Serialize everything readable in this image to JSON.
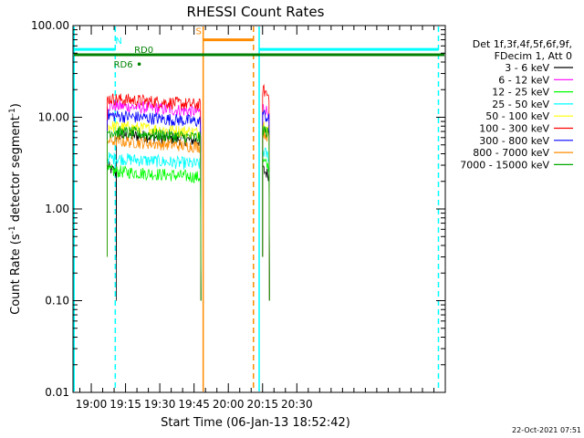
{
  "chart_data": {
    "type": "line",
    "title": "RHESSI Count Rates",
    "xlabel": "Start Time (06-Jan-13 18:52:42)",
    "ylabel": "Count Rate (s",
    "ylabel_sup": "-1",
    "ylabel_tail": " detector segment",
    "ylabel_sup2": "-1",
    "ylabel_close": ")",
    "y_scale": "log",
    "ylim": [
      0.01,
      100
    ],
    "xlim_minutes": [
      -8,
      155
    ],
    "y_ticks": [
      {
        "value": 0.01,
        "label": "0.01"
      },
      {
        "value": 0.1,
        "label": "0.10"
      },
      {
        "value": 1,
        "label": "1.00"
      },
      {
        "value": 10,
        "label": "10.00"
      },
      {
        "value": 100,
        "label": "100.00"
      }
    ],
    "x_ticks": [
      {
        "minute": 0,
        "label": "19:00"
      },
      {
        "minute": 15,
        "label": "19:15"
      },
      {
        "minute": 30,
        "label": "19:30"
      },
      {
        "minute": 45,
        "label": "19:45"
      },
      {
        "minute": 60,
        "label": "20:00"
      },
      {
        "minute": 75,
        "label": "20:15"
      },
      {
        "minute": 90,
        "label": "20:30"
      }
    ],
    "legend_header": [
      "Det 1f,3f,4f,5f,6f,9f,",
      "FDecim 1, Att 0"
    ],
    "series": [
      {
        "name": "3 - 6 keV",
        "color": "#000000",
        "segments": [
          {
            "start": 7,
            "end": 11,
            "level": 2.9
          },
          {
            "start": 11,
            "end": 48,
            "level": 6.5
          },
          {
            "start": 75,
            "end": 78,
            "level": 2.7
          }
        ]
      },
      {
        "name": "6 - 12 keV",
        "color": "#ff00ff",
        "segments": [
          {
            "start": 7,
            "end": 48,
            "level": 13.5
          },
          {
            "start": 75,
            "end": 78,
            "level": 13
          }
        ]
      },
      {
        "name": "12 - 25 keV",
        "color": "#00ff00",
        "segments": [
          {
            "start": 7,
            "end": 48,
            "level": 2.6
          },
          {
            "start": 75,
            "end": 78,
            "level": 3.3
          }
        ]
      },
      {
        "name": "25 - 50 keV",
        "color": "#00ffff",
        "segments": [
          {
            "start": 7,
            "end": 48,
            "level": 3.6
          },
          {
            "start": 75,
            "end": 78,
            "level": 4.3
          }
        ]
      },
      {
        "name": "50 - 100 keV",
        "color": "#ffff00",
        "segments": [
          {
            "start": 7,
            "end": 48,
            "level": 8.0
          },
          {
            "start": 75,
            "end": 78,
            "level": 8.5
          }
        ]
      },
      {
        "name": "100 - 300 keV",
        "color": "#ff0000",
        "segments": [
          {
            "start": 7,
            "end": 48,
            "level": 16.0
          },
          {
            "start": 75,
            "end": 78,
            "level": 20
          }
        ]
      },
      {
        "name": "300 - 800 keV",
        "color": "#0000ff",
        "segments": [
          {
            "start": 7,
            "end": 48,
            "level": 10.5
          },
          {
            "start": 75,
            "end": 78,
            "level": 11
          }
        ]
      },
      {
        "name": "800 - 7000 keV",
        "color": "#ff8c00",
        "segments": [
          {
            "start": 7,
            "end": 48,
            "level": 5.6
          },
          {
            "start": 75,
            "end": 78,
            "level": 7
          }
        ]
      },
      {
        "name": "7000 - 15000 keV",
        "color": "#00aa00",
        "segments": [
          {
            "start": 7,
            "end": 48,
            "level": 7.0
          },
          {
            "start": 75,
            "end": 78,
            "level": 7.5
          }
        ]
      }
    ],
    "flags": [
      {
        "label": "N",
        "color": "#00ffff",
        "level": 55,
        "segments": [
          [
            -8,
            10.5
          ],
          [
            73.5,
            152
          ]
        ],
        "label_minute": 12
      },
      {
        "label": "S",
        "color": "#ff8c00",
        "level": 70,
        "segments": [
          [
            49,
            71
          ]
        ],
        "label_minute": 47
      },
      {
        "label": "RD0",
        "color": "#008000",
        "level": 48,
        "segments": [
          [
            -8,
            155
          ]
        ],
        "label_minute": 23
      },
      {
        "label": "RD6",
        "color": "#008000",
        "level": 38,
        "segments": [],
        "label_minute": 14,
        "dot_minute": 21
      }
    ],
    "vlines": [
      {
        "minute": -7.5,
        "color": "#00ffff",
        "style": "solid"
      },
      {
        "minute": 10.5,
        "color": "#00ffff",
        "style": "dashed"
      },
      {
        "minute": 49,
        "color": "#ff8c00",
        "style": "solid"
      },
      {
        "minute": 71,
        "color": "#ff8c00",
        "style": "dashed"
      },
      {
        "minute": 73.5,
        "color": "#00ffff",
        "style": "solid"
      },
      {
        "minute": 152,
        "color": "#00ffff",
        "style": "dashed"
      }
    ]
  },
  "footer_timestamp": "22-Oct-2021 07:51"
}
